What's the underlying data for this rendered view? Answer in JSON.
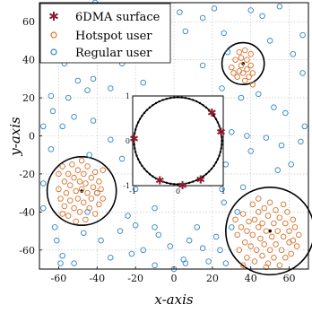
{
  "chart_data": {
    "type": "scatter",
    "xlabel": "x-axis",
    "ylabel": "y-axis",
    "xlim": [
      -70,
      70
    ],
    "ylim": [
      -70,
      70
    ],
    "x_ticks": [
      -60,
      -40,
      -20,
      0,
      20,
      40,
      60
    ],
    "y_ticks": [
      -60,
      -40,
      -20,
      0,
      20,
      40,
      60
    ],
    "grid": true,
    "legend": {
      "placement": "top-left",
      "entries": [
        {
          "label": "6DMA surface",
          "marker": "star",
          "color": "#8b1a2b"
        },
        {
          "label": "Hotspot user",
          "marker": "circle",
          "color": "#d9712a"
        },
        {
          "label": "Regular user",
          "marker": "circle",
          "color": "#2f86c5"
        }
      ]
    },
    "series": [
      {
        "name": "Regular user",
        "color": "#2f86c5",
        "points": [
          [
            -62,
            68
          ],
          [
            -50,
            67
          ],
          [
            -41,
            70
          ],
          [
            -5,
            68
          ],
          [
            -25,
            60
          ],
          [
            3,
            65
          ],
          [
            -18,
            65
          ],
          [
            6,
            55
          ],
          [
            15,
            62
          ],
          [
            21,
            67
          ],
          [
            26,
            54
          ],
          [
            40,
            66
          ],
          [
            46,
            63
          ],
          [
            55,
            68
          ],
          [
            67,
            53
          ],
          [
            -67,
            50
          ],
          [
            -50,
            48
          ],
          [
            -45,
            49
          ],
          [
            -31,
            46
          ],
          [
            -27,
            38
          ],
          [
            -7,
            43
          ],
          [
            15,
            37
          ],
          [
            28,
            44
          ],
          [
            50,
            50
          ],
          [
            62,
            43
          ],
          [
            67,
            33
          ],
          [
            -57,
            38
          ],
          [
            -50,
            29
          ],
          [
            -42,
            30
          ],
          [
            -45,
            24
          ],
          [
            -55,
            20
          ],
          [
            -33,
            25
          ],
          [
            -16,
            28
          ],
          [
            -10,
            10
          ],
          [
            25,
            25
          ],
          [
            35,
            20
          ],
          [
            44,
            22
          ],
          [
            52,
            15
          ],
          [
            58,
            12
          ],
          [
            68,
            5
          ],
          [
            -63,
            13
          ],
          [
            -58,
            5
          ],
          [
            -42,
            8
          ],
          [
            -33,
            -2
          ],
          [
            30,
            2
          ],
          [
            38,
            0
          ],
          [
            48,
            -1
          ],
          [
            56,
            -5
          ],
          [
            66,
            -3
          ],
          [
            -64,
            -7
          ],
          [
            -44,
            -10
          ],
          [
            -27,
            -12
          ],
          [
            27,
            -15
          ],
          [
            40,
            -8
          ],
          [
            61,
            -15
          ],
          [
            -68,
            -25
          ],
          [
            -20,
            -28
          ],
          [
            -15,
            -20
          ],
          [
            19,
            -25
          ],
          [
            26,
            -35
          ],
          [
            36,
            -27
          ],
          [
            54,
            -18
          ],
          [
            -24,
            -42
          ],
          [
            -10,
            -38
          ],
          [
            25,
            -28
          ],
          [
            30,
            -48
          ],
          [
            33,
            -40
          ],
          [
            -62,
            -48
          ],
          [
            -61,
            -55
          ],
          [
            -47,
            -51
          ],
          [
            -38,
            -55
          ],
          [
            -28,
            -50
          ],
          [
            -20,
            -47
          ],
          [
            -10,
            -48
          ],
          [
            -8,
            -52
          ],
          [
            -16,
            -60
          ],
          [
            -22,
            -62
          ],
          [
            -2,
            -58
          ],
          [
            5,
            -65
          ],
          [
            8,
            -55
          ],
          [
            15,
            -59
          ],
          [
            22,
            -53
          ],
          [
            18,
            -66
          ],
          [
            24,
            -60
          ],
          [
            12,
            -48
          ],
          [
            -58,
            -63
          ],
          [
            -59,
            -67
          ],
          [
            -52,
            -67
          ],
          [
            -33,
            -64
          ],
          [
            -10,
            -68
          ],
          [
            0,
            -70
          ],
          [
            6,
            -67
          ],
          [
            27,
            -67
          ],
          [
            -45,
            -40
          ],
          [
            -40,
            -30
          ],
          [
            -68,
            -38
          ],
          [
            -68,
            5
          ],
          [
            -64,
            21
          ],
          [
            -52,
            10
          ]
        ]
      },
      {
        "name": "Hotspot user",
        "color": "#d9712a",
        "points": [
          [
            30,
            36
          ],
          [
            31,
            33
          ],
          [
            32,
            40
          ],
          [
            33,
            31
          ],
          [
            34,
            44
          ],
          [
            35,
            37
          ],
          [
            35,
            41
          ],
          [
            36,
            33
          ],
          [
            37,
            29
          ],
          [
            37,
            45
          ],
          [
            38,
            35
          ],
          [
            38,
            40
          ],
          [
            39,
            31
          ],
          [
            40,
            43
          ],
          [
            40,
            37
          ],
          [
            41,
            33
          ],
          [
            41,
            27
          ],
          [
            34,
            34
          ],
          [
            -60,
            -20
          ],
          [
            -60,
            -28
          ],
          [
            -59,
            -33
          ],
          [
            -58,
            -16
          ],
          [
            -57,
            -24
          ],
          [
            -57,
            -37
          ],
          [
            -56,
            -30
          ],
          [
            -55,
            -20
          ],
          [
            -55,
            -42
          ],
          [
            -54,
            -26
          ],
          [
            -54,
            -34
          ],
          [
            -53,
            -15
          ],
          [
            -52,
            -22
          ],
          [
            -52,
            -38
          ],
          [
            -51,
            -29
          ],
          [
            -51,
            -45
          ],
          [
            -50,
            -18
          ],
          [
            -50,
            -33
          ],
          [
            -49,
            -24
          ],
          [
            -49,
            -40
          ],
          [
            -48,
            -13
          ],
          [
            -48,
            -28
          ],
          [
            -47,
            -20
          ],
          [
            -47,
            -35
          ],
          [
            -46,
            -44
          ],
          [
            -46,
            -25
          ],
          [
            -45,
            -16
          ],
          [
            -45,
            -30
          ],
          [
            -44,
            -38
          ],
          [
            -43,
            -22
          ],
          [
            -43,
            -33
          ],
          [
            -42,
            -27
          ],
          [
            -41,
            -19
          ],
          [
            -41,
            -41
          ],
          [
            -40,
            -30
          ],
          [
            -39,
            -24
          ],
          [
            -39,
            -36
          ],
          [
            -38,
            -28
          ],
          [
            -37,
            -18
          ],
          [
            -37,
            -33
          ],
          [
            -58,
            -41
          ],
          [
            32,
            -44
          ],
          [
            33,
            -52
          ],
          [
            34,
            -60
          ],
          [
            35,
            -48
          ],
          [
            36,
            -41
          ],
          [
            37,
            -56
          ],
          [
            38,
            -64
          ],
          [
            38,
            -50
          ],
          [
            39,
            -45
          ],
          [
            40,
            -58
          ],
          [
            41,
            -36
          ],
          [
            41,
            -52
          ],
          [
            42,
            -66
          ],
          [
            42,
            -44
          ],
          [
            43,
            -60
          ],
          [
            44,
            -48
          ],
          [
            44,
            -40
          ],
          [
            45,
            -54
          ],
          [
            46,
            -63
          ],
          [
            46,
            -46
          ],
          [
            47,
            -38
          ],
          [
            47,
            -57
          ],
          [
            48,
            -50
          ],
          [
            49,
            -42
          ],
          [
            49,
            -67
          ],
          [
            50,
            -60
          ],
          [
            50,
            -35
          ],
          [
            51,
            -53
          ],
          [
            52,
            -46
          ],
          [
            52,
            -64
          ],
          [
            53,
            -39
          ],
          [
            53,
            -57
          ],
          [
            54,
            -50
          ],
          [
            55,
            -43
          ],
          [
            55,
            -68
          ],
          [
            56,
            -60
          ],
          [
            57,
            -36
          ],
          [
            57,
            -53
          ],
          [
            58,
            -46
          ],
          [
            58,
            -64
          ],
          [
            59,
            -40
          ],
          [
            60,
            -56
          ],
          [
            60,
            -50
          ],
          [
            61,
            -62
          ],
          [
            62,
            -44
          ],
          [
            62,
            -55
          ],
          [
            63,
            -48
          ],
          [
            64,
            -58
          ],
          [
            65,
            -52
          ],
          [
            44,
            -33
          ],
          [
            36,
            -68
          ],
          [
            48,
            -69
          ]
        ]
      }
    ],
    "hotspot_regions": [
      {
        "center": [
          36,
          38
        ],
        "radius": 11
      },
      {
        "center": [
          -48,
          -29
        ],
        "radius": 18
      },
      {
        "center": [
          50,
          -50
        ],
        "radius": 23
      }
    ],
    "inset": {
      "xlim": [
        -1,
        1
      ],
      "ylim": [
        -1,
        1
      ],
      "x_ticks": [
        -1,
        0,
        1
      ],
      "y_ticks": [
        -1,
        0,
        1
      ],
      "circle_radius": 0.97,
      "star_points": [
        [
          -0.97,
          0.05
        ],
        [
          0.95,
          0.2
        ],
        [
          0.75,
          0.63
        ],
        [
          -0.4,
          -0.88
        ],
        [
          0.1,
          -0.99
        ],
        [
          0.5,
          -0.86
        ]
      ]
    }
  }
}
